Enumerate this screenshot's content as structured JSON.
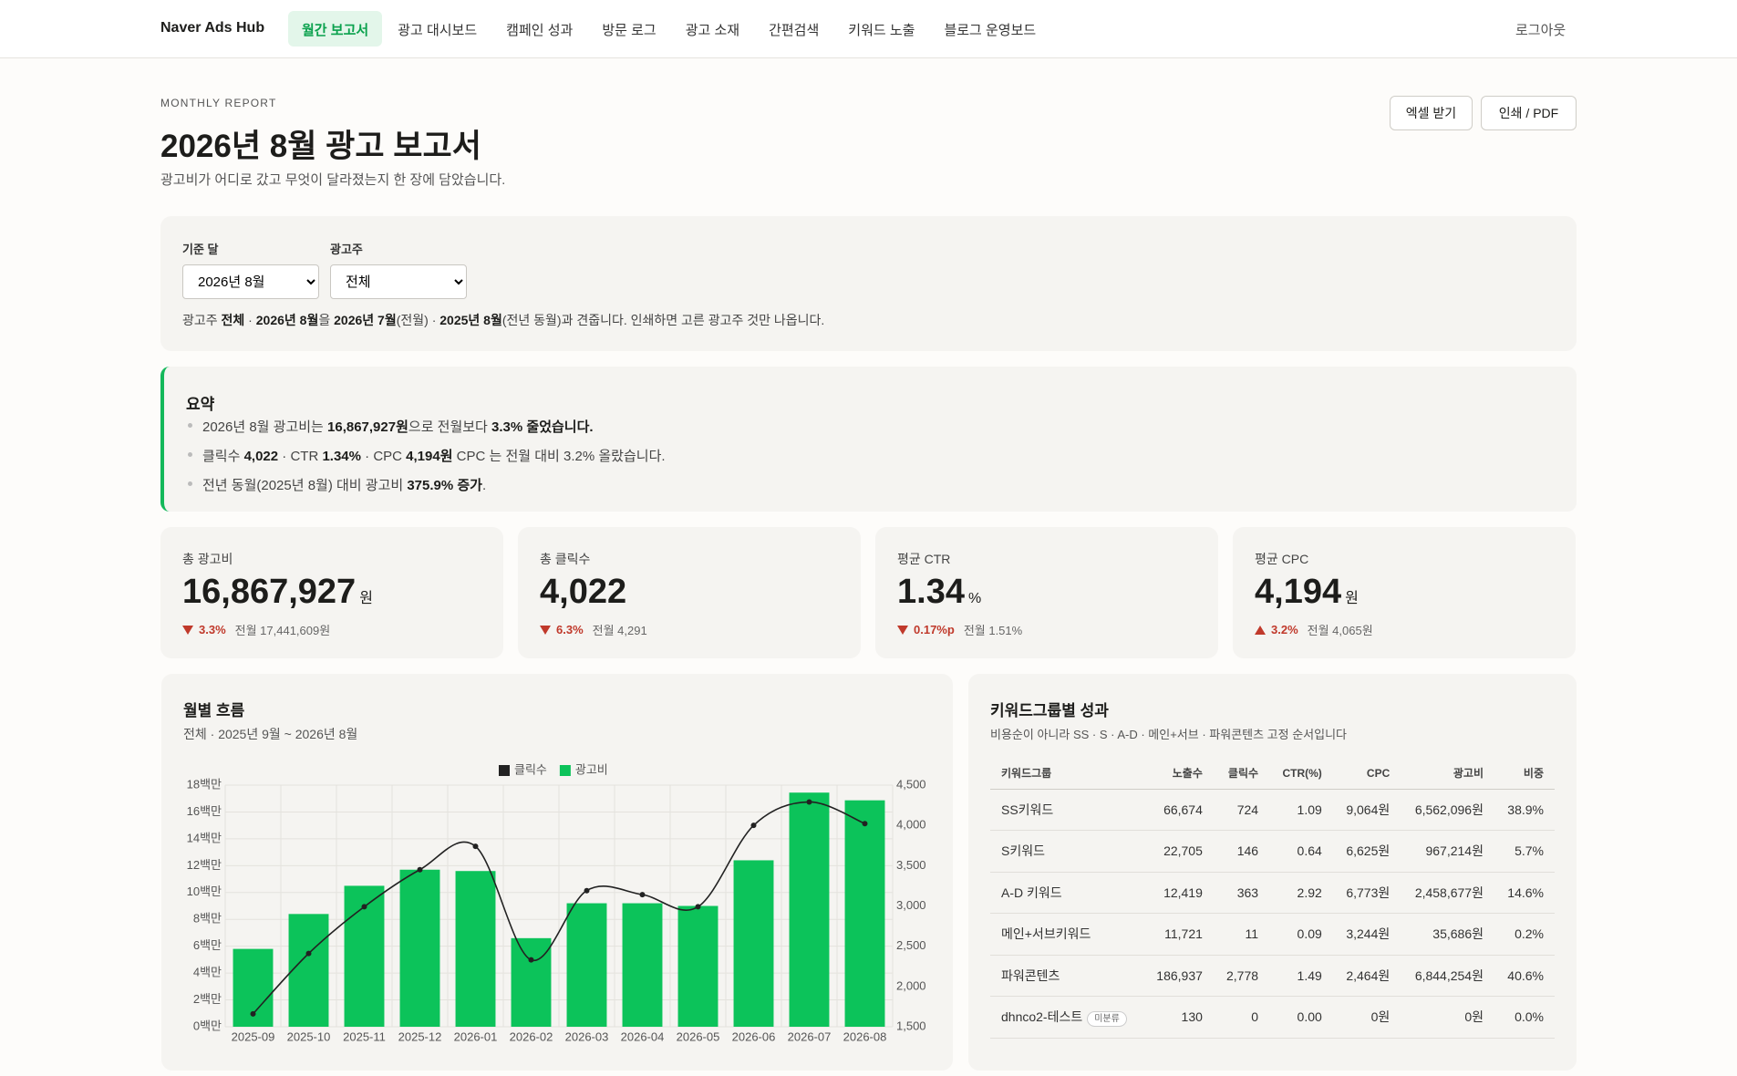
{
  "nav": {
    "brand": "Naver Ads Hub",
    "items": [
      "월간 보고서",
      "광고 대시보드",
      "캠페인 성과",
      "방문 로그",
      "광고 소재",
      "간편검색",
      "키워드 노출",
      "블로그 운영보드"
    ],
    "active": 0,
    "logout": "로그아웃"
  },
  "header": {
    "eyebrow": "MONTHLY REPORT",
    "title": "2026년 8월 광고 보고서",
    "subtitle": "광고비가 어디로 갔고 무엇이 달라졌는지 한 장에 담았습니다.",
    "buttons": [
      "엑셀 받기",
      "인쇄 / PDF"
    ]
  },
  "filters": {
    "fields": [
      {
        "label": "기준 달",
        "value": "2026년 8월"
      },
      {
        "label": "광고주",
        "value": "전체"
      }
    ],
    "note": [
      {
        "t": "광고주 "
      },
      {
        "t": "전체",
        "b": true
      },
      {
        "t": " · "
      },
      {
        "t": "2026년 8월",
        "b": true
      },
      {
        "t": "을 "
      },
      {
        "t": "2026년 7월",
        "b": true
      },
      {
        "t": "(전월) · "
      },
      {
        "t": "2025년 8월",
        "b": true
      },
      {
        "t": "(전년 동월)과 견줍니다. 인쇄하면 고른 광고주 것만 나옵니다."
      }
    ]
  },
  "summary": {
    "title": "요약",
    "items": [
      [
        {
          "t": "2026년 8월 광고비는 "
        },
        {
          "t": "16,867,927원",
          "b": true
        },
        {
          "t": "으로 전월보다 "
        },
        {
          "t": "3.3% 줄었습니다.",
          "b": true
        }
      ],
      [
        {
          "t": "클릭수 "
        },
        {
          "t": "4,022",
          "b": true
        },
        {
          "t": " · CTR "
        },
        {
          "t": "1.34%",
          "b": true
        },
        {
          "t": " · CPC "
        },
        {
          "t": "4,194원",
          "b": true
        },
        {
          "t": " CPC 는 전월 대비 3.2% 올랐습니다."
        }
      ],
      [
        {
          "t": "전년 동월(2025년 8월) 대비 광고비 "
        },
        {
          "t": "375.9% 증가",
          "b": true
        },
        {
          "t": "."
        }
      ]
    ]
  },
  "kpis": [
    {
      "label": "총 광고비",
      "value": "16,867,927",
      "unit": "원",
      "direction": "down",
      "delta": "3.3%",
      "prev": "전월 17,441,609원"
    },
    {
      "label": "총 클릭수",
      "value": "4,022",
      "direction": "down",
      "delta": "6.3%",
      "prev": "전월 4,291"
    },
    {
      "label": "평균 CTR",
      "value": "1.34",
      "unit": "%",
      "direction": "down",
      "delta": "0.17%p",
      "prev": "전월 1.51%"
    },
    {
      "label": "평균 CPC",
      "value": "4,194",
      "unit": "원",
      "direction": "up",
      "delta": "3.2%",
      "prev": "전월 4,065원"
    }
  ],
  "chart_data": {
    "type": "combo",
    "title": "월별 흐름",
    "subtitle": "전체 · 2025년 9월 ~ 2026년 8월",
    "categories": [
      "2025-09",
      "2025-10",
      "2025-11",
      "2025-12",
      "2026-01",
      "2026-02",
      "2026-03",
      "2026-04",
      "2026-05",
      "2026-06",
      "2026-07",
      "2026-08"
    ],
    "series": [
      {
        "name": "클릭수",
        "type": "line",
        "axis": "y2",
        "color": "#222222",
        "values": [
          1660,
          2410,
          2990,
          3450,
          3740,
          2330,
          3190,
          3140,
          2990,
          4000,
          4291,
          4022
        ]
      },
      {
        "name": "광고비",
        "type": "bar",
        "color": "#0cc35a",
        "values": [
          5800000,
          8400000,
          10500000,
          11700000,
          11600000,
          6600000,
          9200000,
          9200000,
          9000000,
          12400000,
          17441609,
          16867927
        ]
      }
    ],
    "ylim": [
      0,
      18000000
    ],
    "yticks": [
      {
        "value": 0,
        "label": "0백만"
      },
      {
        "value": 2000000,
        "label": "2백만"
      },
      {
        "value": 4000000,
        "label": "4백만"
      },
      {
        "value": 6000000,
        "label": "6백만"
      },
      {
        "value": 8000000,
        "label": "8백만"
      },
      {
        "value": 10000000,
        "label": "10백만"
      },
      {
        "value": 12000000,
        "label": "12백만"
      },
      {
        "value": 14000000,
        "label": "14백만"
      },
      {
        "value": 16000000,
        "label": "16백만"
      },
      {
        "value": 18000000,
        "label": "18백만"
      }
    ],
    "y2lim": [
      1500,
      4500
    ],
    "y2ticks": [
      {
        "value": 1500,
        "label": "1,500"
      },
      {
        "value": 2000,
        "label": "2,000"
      },
      {
        "value": 2500,
        "label": "2,500"
      },
      {
        "value": 3000,
        "label": "3,000"
      },
      {
        "value": 3500,
        "label": "3,500"
      },
      {
        "value": 4000,
        "label": "4,000"
      },
      {
        "value": 4500,
        "label": "4,500"
      }
    ],
    "grid": true,
    "legend": "top"
  },
  "table": {
    "title": "키워드그룹별 성과",
    "subtitle": "비용순이 아니라 SS · S · A-D · 메인+서브 · 파워콘텐츠 고정 순서입니다",
    "columns": [
      "키워드그룹",
      "노출수",
      "클릭수",
      "CTR(%)",
      "CPC",
      "광고비",
      "비중"
    ],
    "rows": [
      {
        "cells": [
          "SS키워드",
          "66,674",
          "724",
          "1.09",
          "9,064원",
          "6,562,096원",
          "38.9%"
        ]
      },
      {
        "cells": [
          "S키워드",
          "22,705",
          "146",
          "0.64",
          "6,625원",
          "967,214원",
          "5.7%"
        ]
      },
      {
        "cells": [
          "A-D 키워드",
          "12,419",
          "363",
          "2.92",
          "6,773원",
          "2,458,677원",
          "14.6%"
        ]
      },
      {
        "cells": [
          "메인+서브키워드",
          "11,721",
          "11",
          "0.09",
          "3,244원",
          "35,686원",
          "0.2%"
        ]
      },
      {
        "cells": [
          "파워콘텐츠",
          "186,937",
          "2,778",
          "1.49",
          "2,464원",
          "6,844,254원",
          "40.6%"
        ]
      },
      {
        "cells": [
          "dhnco2-테스트",
          "130",
          "0",
          "0.00",
          "0원",
          "0원",
          "0.0%"
        ],
        "badge": "미분류"
      }
    ]
  }
}
